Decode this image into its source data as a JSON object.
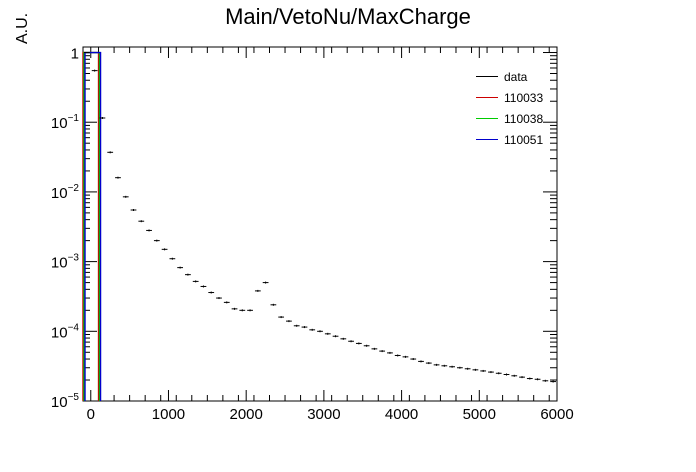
{
  "chart_data": {
    "type": "histogram",
    "title": "Main/VetoNu/MaxCharge",
    "xlabel": "",
    "ylabel": "A.U.",
    "xlim": [
      -100,
      6000
    ],
    "ylim": [
      1e-05,
      1.2
    ],
    "yscale": "log",
    "grid": false,
    "legend_position": "top-right",
    "xticks": [
      "0",
      "1000",
      "2000",
      "3000",
      "4000",
      "5000",
      "6000"
    ],
    "yticks": [
      {
        "base": "10",
        "exp": "−5",
        "value": 1e-05
      },
      {
        "base": "10",
        "exp": "−4",
        "value": 0.0001
      },
      {
        "base": "10",
        "exp": "−3",
        "value": 0.001
      },
      {
        "base": "10",
        "exp": "−2",
        "value": 0.01
      },
      {
        "base": "10",
        "exp": "−1",
        "value": 0.1
      },
      {
        "base": "1",
        "exp": "",
        "value": 1
      }
    ],
    "series": [
      {
        "name": "data",
        "color": "#000000",
        "style": "points",
        "bin_width": 100,
        "x": [
          50,
          150,
          250,
          350,
          450,
          550,
          650,
          750,
          850,
          950,
          1050,
          1150,
          1250,
          1350,
          1450,
          1550,
          1650,
          1750,
          1850,
          1950,
          2050,
          2150,
          2250,
          2350,
          2450,
          2550,
          2650,
          2750,
          2850,
          2950,
          3050,
          3150,
          3250,
          3350,
          3450,
          3550,
          3650,
          3750,
          3850,
          3950,
          4050,
          4150,
          4250,
          4350,
          4450,
          4550,
          4650,
          4750,
          4850,
          4950,
          5050,
          5150,
          5250,
          5350,
          5450,
          5550,
          5650,
          5750,
          5850,
          5950
        ],
        "y": [
          0.55,
          0.115,
          0.037,
          0.016,
          0.0085,
          0.0055,
          0.0038,
          0.0028,
          0.002,
          0.0015,
          0.0011,
          0.00082,
          0.00065,
          0.00052,
          0.00044,
          0.00036,
          0.0003,
          0.00026,
          0.00021,
          0.0002,
          0.0002,
          0.00038,
          0.0005,
          0.00024,
          0.00016,
          0.00014,
          0.00012,
          0.000115,
          0.000105,
          0.0001,
          9.2e-05,
          8.5e-05,
          7.8e-05,
          7.2e-05,
          6.7e-05,
          6.2e-05,
          5.6e-05,
          5.2e-05,
          4.9e-05,
          4.5e-05,
          4.3e-05,
          4e-05,
          3.7e-05,
          3.5e-05,
          3.3e-05,
          3.2e-05,
          3.1e-05,
          3e-05,
          2.9e-05,
          2.8e-05,
          2.7e-05,
          2.6e-05,
          2.5e-05,
          2.4e-05,
          2.3e-05,
          2.2e-05,
          2.1e-05,
          2.05e-05,
          1.95e-05,
          1.9e-05
        ]
      },
      {
        "name": "110033",
        "color": "#cc0000",
        "style": "hist"
      },
      {
        "name": "110038",
        "color": "#00cc00",
        "style": "hist"
      },
      {
        "name": "110051",
        "color": "#0000cc",
        "style": "hist"
      }
    ],
    "spike": {
      "x0": -100,
      "x1": 100,
      "y": 1.0
    }
  }
}
